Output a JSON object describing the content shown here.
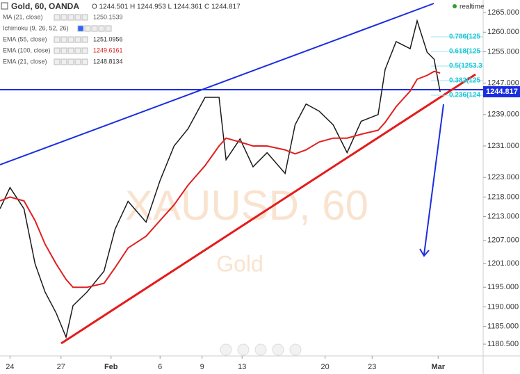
{
  "header": {
    "symbol": "Gold, 60, OANDA",
    "ohlc": "O 1244.501 H 1244.953 L 1244.361 C 1244.817",
    "status": "realtime"
  },
  "legend": [
    {
      "name": "MA (21, close)",
      "value": "1250.1539",
      "color": "#555555"
    },
    {
      "name": "Ichimoku (9, 26, 52, 26)",
      "value": "",
      "color": "#888888"
    },
    {
      "name": "EMA (55, close)",
      "value": "1251.0956",
      "color": "#333333"
    },
    {
      "name": "EMA (100, close)",
      "value": "1249.6161",
      "color": "#e02020"
    },
    {
      "name": "EMA (21, close)",
      "value": "1248.8134",
      "color": "#333333"
    }
  ],
  "watermark": [
    "XAUUSD, 60",
    "Gold"
  ],
  "fib_labels": [
    "0.786(125",
    "0.618(125",
    "0.5(1253.3",
    "0.382(125",
    "0.236(124"
  ],
  "chart_data": {
    "type": "line",
    "x": [
      0,
      1,
      2.4,
      3.5,
      4.5,
      5.6,
      6.6,
      7.3,
      8.7,
      10.4,
      11.5,
      12.8,
      14.6,
      16,
      17.4,
      18.8,
      20.5,
      21.9,
      22.6,
      24,
      25.3,
      26.7,
      28.5,
      29.5,
      30.6,
      31.9,
      33.3,
      34.7,
      36.1,
      37.8,
      38.5,
      39.6,
      41,
      41.7,
      42.7,
      43.4,
      44
    ],
    "series": [
      {
        "name": "Gold",
        "color": "#1a1a1a",
        "values": [
          1215,
          1220.4,
          1215,
          1201,
          1193.8,
          1188.5,
          1182.3,
          1190.3,
          1193.8,
          1199.1,
          1209.8,
          1216.9,
          1211.6,
          1222.2,
          1231,
          1235.4,
          1243.4,
          1243.4,
          1227.5,
          1232.8,
          1225.7,
          1229.3,
          1224,
          1236.4,
          1241.7,
          1239.9,
          1236.4,
          1229.3,
          1237.3,
          1239,
          1250.5,
          1257.6,
          1255.8,
          1262.9,
          1254.9,
          1253.1,
          1244.8
        ]
      },
      {
        "name": "EMA (100, close)",
        "color": "#e02020",
        "values": [
          1217,
          1218,
          1217,
          1212,
          1206,
          1201,
          1197,
          1195,
          1195,
          1196,
          1200,
          1205,
          1208,
          1212,
          1216,
          1221,
          1226,
          1231,
          1233,
          1232,
          1231,
          1231,
          1230,
          1229,
          1230,
          1232,
          1233,
          1233,
          1234,
          1235,
          1237,
          1241,
          1245,
          1248,
          1249,
          1250,
          1249.6
        ]
      }
    ],
    "xlim": [
      0,
      48.3
    ],
    "xticks": [
      {
        "value": 1,
        "label": "24"
      },
      {
        "value": 6.1,
        "label": "27"
      },
      {
        "value": 11.1,
        "label": "Feb"
      },
      {
        "value": 16,
        "label": "6"
      },
      {
        "value": 20.2,
        "label": "9"
      },
      {
        "value": 24.2,
        "label": "13"
      },
      {
        "value": 32.5,
        "label": "20"
      },
      {
        "value": 37.2,
        "label": "23"
      },
      {
        "value": 43.8,
        "label": "Mar"
      }
    ],
    "ylim": [
      1177.5,
      1268.2
    ],
    "yticks": [
      {
        "value": 1265,
        "label": "1265.000"
      },
      {
        "value": 1260,
        "label": "1260.000"
      },
      {
        "value": 1255,
        "label": "1255.000"
      },
      {
        "value": 1247,
        "label": "1247.000"
      },
      {
        "value": 1239,
        "label": "1239.000"
      },
      {
        "value": 1231,
        "label": "1231.000"
      },
      {
        "value": 1223,
        "label": "1223.000"
      },
      {
        "value": 1218,
        "label": "1218.000"
      },
      {
        "value": 1213,
        "label": "1213.000"
      },
      {
        "value": 1207,
        "label": "1207.000"
      },
      {
        "value": 1201,
        "label": "1201.000"
      },
      {
        "value": 1195,
        "label": "1195.000"
      },
      {
        "value": 1190,
        "label": "1190.000"
      },
      {
        "value": 1185,
        "label": "1185.000"
      },
      {
        "value": 1180.5,
        "label": "1180.500"
      }
    ],
    "last_price": {
      "value": 1244.817,
      "label": "1244.817"
    }
  }
}
